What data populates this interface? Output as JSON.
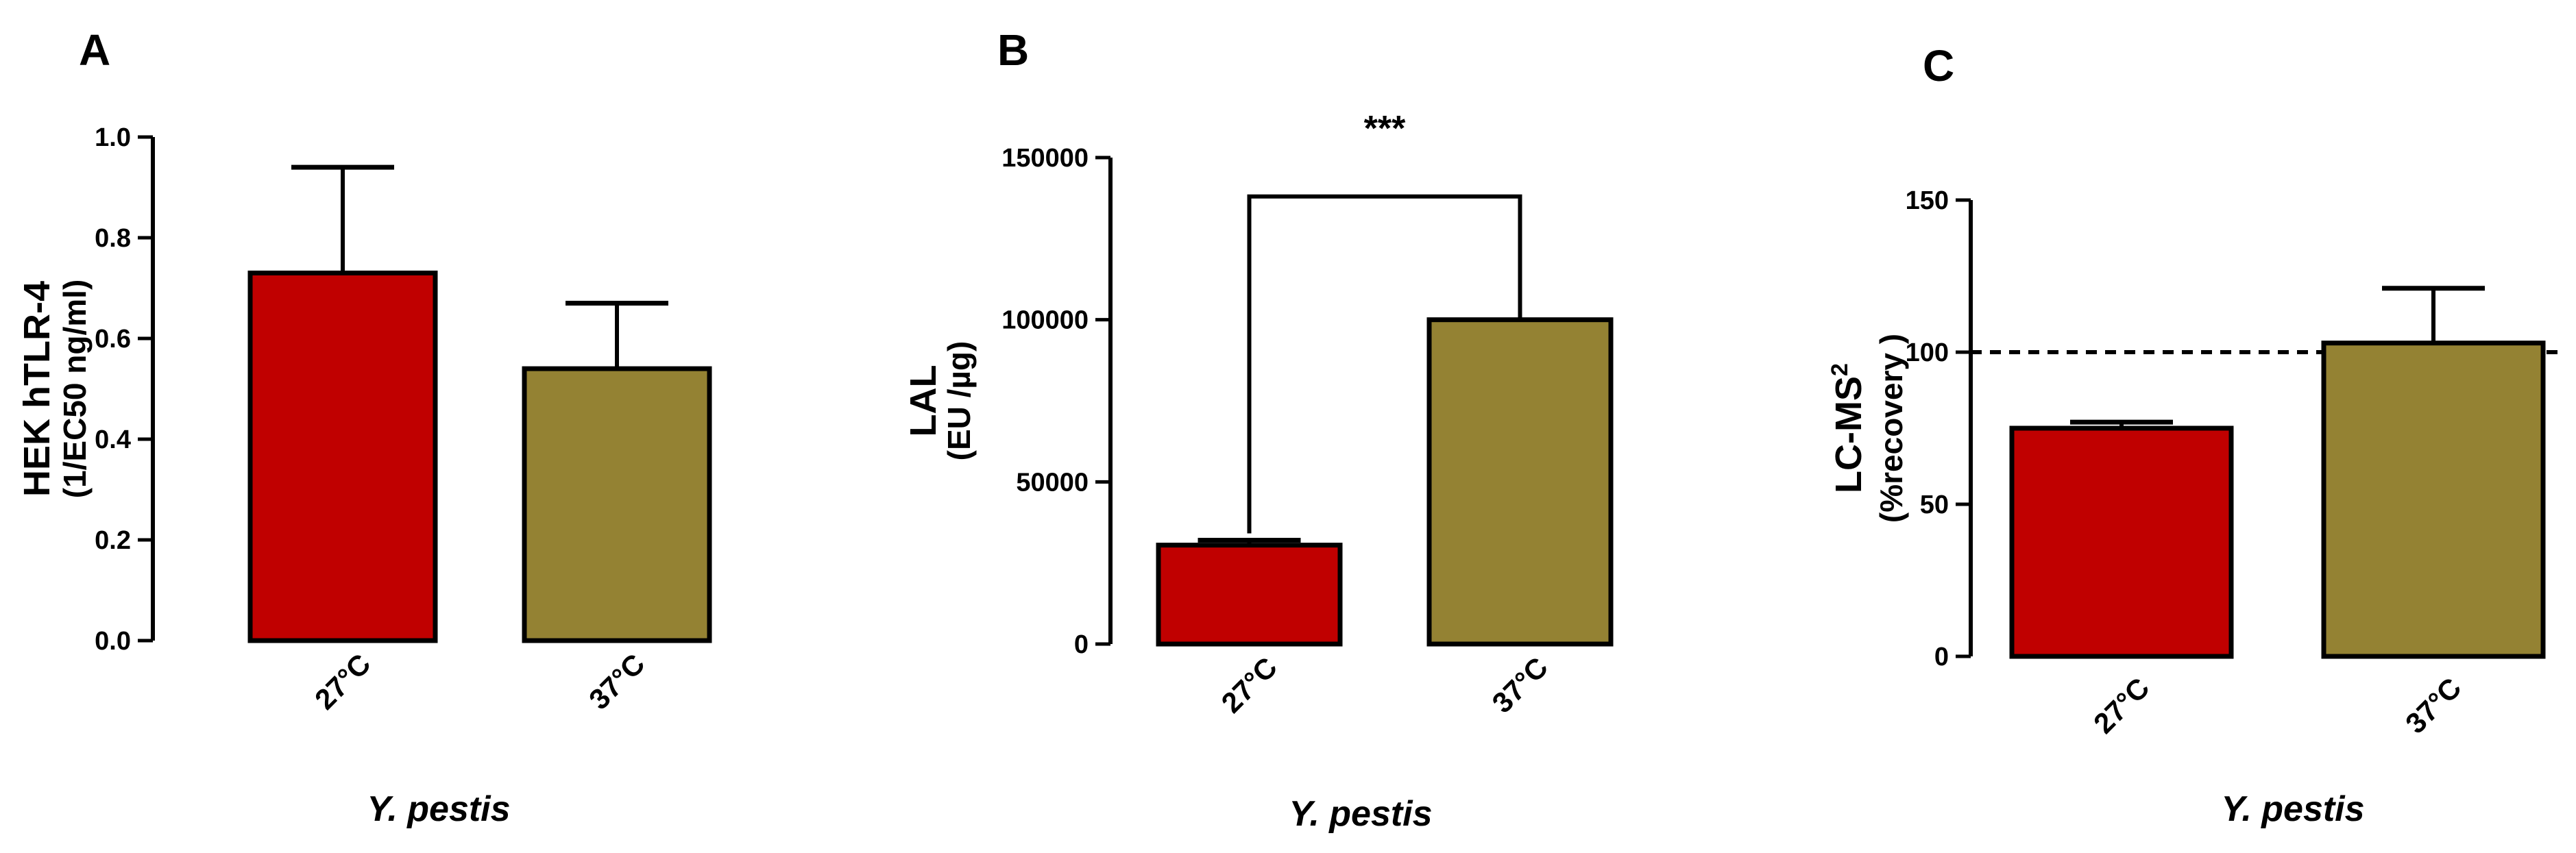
{
  "chart_data": [
    {
      "panel": "A",
      "type": "bar",
      "categories": [
        "27°C",
        "37°C"
      ],
      "values": [
        0.73,
        0.54
      ],
      "errors": [
        0.21,
        0.13
      ],
      "colors": [
        "#c00000",
        "#948233"
      ],
      "ylabel": "HEK hTLR-4",
      "ylabel_line2": "(1/EC50 ng/ml)",
      "xlabel": "Y. pestis",
      "ylim": [
        0,
        1.0
      ],
      "yticks": [
        0.0,
        0.2,
        0.4,
        0.6,
        0.8,
        1.0
      ],
      "ytick_labels": [
        "0.0",
        "0.2",
        "0.4",
        "0.6",
        "0.8",
        "1.0"
      ]
    },
    {
      "panel": "B",
      "type": "bar",
      "categories": [
        "27°C",
        "37°C"
      ],
      "values": [
        30500,
        100000
      ],
      "errors": [
        1500,
        0
      ],
      "colors": [
        "#c00000",
        "#948233"
      ],
      "ylabel": "LAL",
      "ylabel_line2": "(EU /µg)",
      "xlabel": "Y. pestis",
      "ylim": [
        0,
        150000
      ],
      "yticks": [
        0,
        50000,
        100000,
        150000
      ],
      "ytick_labels": [
        "0",
        "50000",
        "100000",
        "150000"
      ],
      "significance": {
        "label": "***",
        "y": 138000
      }
    },
    {
      "panel": "C",
      "type": "bar",
      "categories": [
        "27°C",
        "37°C"
      ],
      "values": [
        75,
        103
      ],
      "errors": [
        2,
        18
      ],
      "colors": [
        "#c00000",
        "#948233"
      ],
      "ylabel": "LC-MS",
      "ylabel_sup": "2",
      "ylabel_line2": "(%recovery )",
      "xlabel": "Y. pestis",
      "ylim": [
        0,
        150
      ],
      "yticks": [
        0,
        50,
        100,
        150
      ],
      "ytick_labels": [
        "0",
        "50",
        "100",
        "150"
      ],
      "reference_line": 100
    }
  ]
}
